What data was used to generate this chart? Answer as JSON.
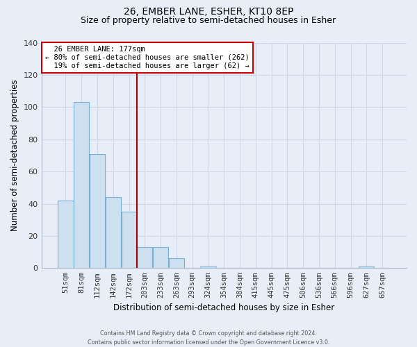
{
  "title": "26, EMBER LANE, ESHER, KT10 8EP",
  "subtitle": "Size of property relative to semi-detached houses in Esher",
  "xlabel": "Distribution of semi-detached houses by size in Esher",
  "ylabel": "Number of semi-detached properties",
  "footer_line1": "Contains HM Land Registry data © Crown copyright and database right 2024.",
  "footer_line2": "Contains public sector information licensed under the Open Government Licence v3.0.",
  "bar_labels": [
    "51sqm",
    "81sqm",
    "112sqm",
    "142sqm",
    "172sqm",
    "203sqm",
    "233sqm",
    "263sqm",
    "293sqm",
    "324sqm",
    "354sqm",
    "384sqm",
    "415sqm",
    "445sqm",
    "475sqm",
    "506sqm",
    "536sqm",
    "566sqm",
    "596sqm",
    "627sqm",
    "657sqm"
  ],
  "bar_values": [
    42,
    103,
    71,
    44,
    35,
    13,
    13,
    6,
    0,
    1,
    0,
    0,
    0,
    0,
    0,
    0,
    0,
    0,
    0,
    1,
    0
  ],
  "bar_facecolor": "#cce0f0",
  "bar_edgecolor": "#7aafd4",
  "property_label": "26 EMBER LANE: 177sqm",
  "pct_smaller": 80,
  "count_smaller": 262,
  "pct_larger": 19,
  "count_larger": 62,
  "vline_color": "#aa0000",
  "annotation_box_facecolor": "#ffffff",
  "annotation_box_edgecolor": "#cc0000",
  "grid_color": "#d0d8e8",
  "bg_color": "#e8eef8",
  "ylim": [
    0,
    140
  ],
  "yticks": [
    0,
    20,
    40,
    60,
    80,
    100,
    120,
    140
  ],
  "title_fontsize": 10,
  "subtitle_fontsize": 9
}
